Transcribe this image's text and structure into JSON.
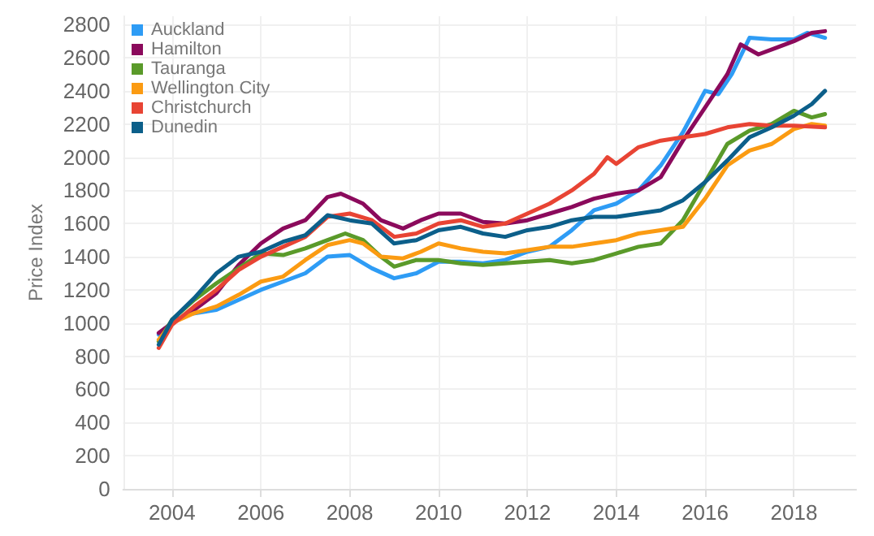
{
  "chart_data": {
    "type": "line",
    "ylabel": "Price Index",
    "xlim": [
      2002.9,
      2019.4
    ],
    "xticks": [
      2004,
      2006,
      2008,
      2010,
      2012,
      2014,
      2016,
      2018
    ],
    "ylim": [
      0,
      2850
    ],
    "yticks": [
      0,
      200,
      400,
      600,
      800,
      1000,
      1200,
      1400,
      1600,
      1800,
      2000,
      2200,
      2400,
      2600,
      2800
    ],
    "grid": true,
    "legend": "top left",
    "marker": "none",
    "line_style": "solid",
    "series": [
      {
        "name": "Auckland",
        "color": "#2e9cf5",
        "x": [
          2003.7,
          2004,
          2004.3,
          2005,
          2005.5,
          2006,
          2006.5,
          2007,
          2007.5,
          2008,
          2008.5,
          2009,
          2009.5,
          2010,
          2010.5,
          2011,
          2011.5,
          2012,
          2012.5,
          2013,
          2013.5,
          2014,
          2014.5,
          2015,
          2015.5,
          2016,
          2016.3,
          2016.6,
          2017,
          2017.5,
          2018,
          2018.3,
          2018.7
        ],
        "values": [
          930,
          1000,
          1050,
          1080,
          1140,
          1200,
          1250,
          1300,
          1400,
          1410,
          1330,
          1270,
          1300,
          1370,
          1370,
          1360,
          1380,
          1430,
          1460,
          1560,
          1680,
          1720,
          1800,
          1950,
          2150,
          2400,
          2380,
          2500,
          2720,
          2710,
          2710,
          2750,
          2720
        ]
      },
      {
        "name": "Hamilton",
        "color": "#8b0a5c",
        "x": [
          2003.7,
          2004,
          2004.5,
          2005,
          2005.5,
          2006,
          2006.5,
          2007,
          2007.5,
          2007.8,
          2008.3,
          2008.7,
          2009.2,
          2009.6,
          2010,
          2010.5,
          2011,
          2011.5,
          2012,
          2012.5,
          2013,
          2013.5,
          2014,
          2014.5,
          2015,
          2015.5,
          2016,
          2016.5,
          2016.8,
          2017.2,
          2017.6,
          2018,
          2018.4,
          2018.7
        ],
        "values": [
          940,
          1000,
          1080,
          1180,
          1350,
          1480,
          1570,
          1620,
          1760,
          1780,
          1720,
          1620,
          1570,
          1620,
          1660,
          1660,
          1610,
          1600,
          1620,
          1660,
          1700,
          1750,
          1780,
          1800,
          1880,
          2100,
          2300,
          2500,
          2680,
          2620,
          2660,
          2700,
          2750,
          2760
        ]
      },
      {
        "name": "Tauranga",
        "color": "#5a9a2a",
        "x": [
          2003.7,
          2004,
          2004.5,
          2005,
          2005.5,
          2006,
          2006.5,
          2007,
          2007.5,
          2007.9,
          2008.3,
          2008.7,
          2009,
          2009.5,
          2010,
          2010.5,
          2011,
          2011.5,
          2012,
          2012.5,
          2013,
          2013.5,
          2014,
          2014.5,
          2015,
          2015.5,
          2016,
          2016.5,
          2017,
          2017.5,
          2018,
          2018.4,
          2018.7
        ],
        "values": [
          890,
          1020,
          1140,
          1240,
          1330,
          1420,
          1410,
          1450,
          1500,
          1540,
          1500,
          1400,
          1340,
          1380,
          1380,
          1360,
          1350,
          1360,
          1370,
          1380,
          1360,
          1380,
          1420,
          1460,
          1480,
          1620,
          1850,
          2080,
          2160,
          2200,
          2280,
          2240,
          2260
        ]
      },
      {
        "name": "Wellington City",
        "color": "#fb9b12",
        "x": [
          2003.7,
          2004,
          2004.5,
          2005,
          2005.5,
          2006,
          2006.5,
          2007,
          2007.5,
          2008,
          2008.3,
          2008.7,
          2009.2,
          2009.6,
          2010,
          2010.5,
          2011,
          2011.5,
          2012,
          2012.5,
          2013,
          2013.5,
          2014,
          2014.5,
          2015,
          2015.5,
          2016,
          2016.5,
          2017,
          2017.5,
          2018,
          2018.4,
          2018.7
        ],
        "values": [
          900,
          1000,
          1060,
          1100,
          1170,
          1250,
          1280,
          1380,
          1470,
          1500,
          1480,
          1400,
          1390,
          1430,
          1480,
          1450,
          1430,
          1420,
          1440,
          1460,
          1460,
          1480,
          1500,
          1540,
          1560,
          1580,
          1750,
          1950,
          2040,
          2080,
          2170,
          2200,
          2190
        ]
      },
      {
        "name": "Christchurch",
        "color": "#e84434",
        "x": [
          2003.7,
          2004,
          2004.5,
          2005,
          2005.5,
          2006,
          2006.5,
          2007,
          2007.5,
          2008,
          2008.5,
          2009,
          2009.5,
          2010,
          2010.5,
          2011,
          2011.5,
          2012,
          2012.5,
          2013,
          2013.5,
          2013.8,
          2014,
          2014.5,
          2015,
          2015.5,
          2016,
          2016.5,
          2017,
          2017.5,
          2018,
          2018.7
        ],
        "values": [
          850,
          990,
          1100,
          1200,
          1320,
          1400,
          1460,
          1520,
          1640,
          1660,
          1620,
          1520,
          1540,
          1600,
          1620,
          1580,
          1600,
          1660,
          1720,
          1800,
          1900,
          2000,
          1960,
          2060,
          2100,
          2120,
          2140,
          2180,
          2200,
          2190,
          2190,
          2180
        ]
      },
      {
        "name": "Dunedin",
        "color": "#0c5f8a",
        "x": [
          2003.7,
          2004,
          2004.5,
          2005,
          2005.5,
          2006,
          2006.5,
          2007,
          2007.5,
          2008,
          2008.5,
          2009,
          2009.5,
          2010,
          2010.5,
          2011,
          2011.5,
          2012,
          2012.5,
          2013,
          2013.5,
          2014,
          2014.5,
          2015,
          2015.5,
          2016,
          2016.5,
          2017,
          2017.5,
          2018,
          2018.4,
          2018.7
        ],
        "values": [
          870,
          1020,
          1150,
          1300,
          1400,
          1430,
          1490,
          1530,
          1650,
          1620,
          1600,
          1480,
          1500,
          1560,
          1580,
          1540,
          1520,
          1560,
          1580,
          1620,
          1640,
          1640,
          1660,
          1680,
          1740,
          1850,
          1980,
          2120,
          2180,
          2250,
          2320,
          2400
        ]
      }
    ]
  }
}
